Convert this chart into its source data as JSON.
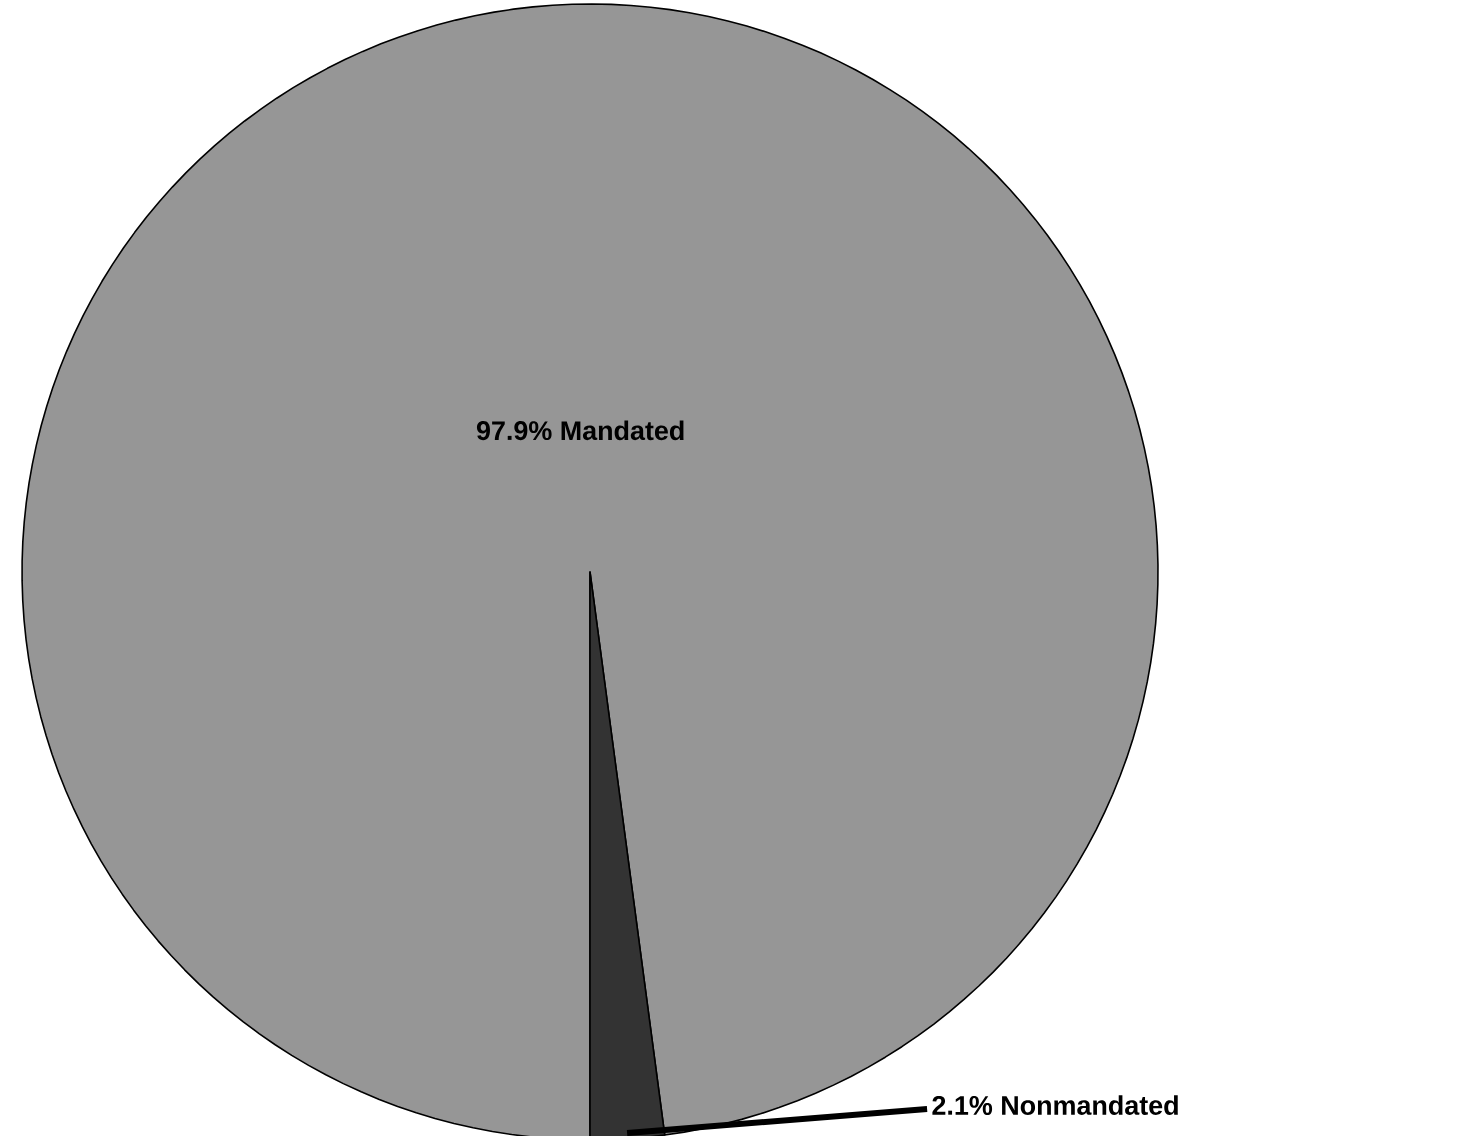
{
  "chart_data": {
    "type": "pie",
    "categories": [
      "Mandated",
      "Nonmandated"
    ],
    "values": [
      97.9,
      2.1
    ],
    "value_labels": [
      "97.9%",
      "2.1%"
    ],
    "colors": [
      "#969696",
      "#333333"
    ]
  }
}
